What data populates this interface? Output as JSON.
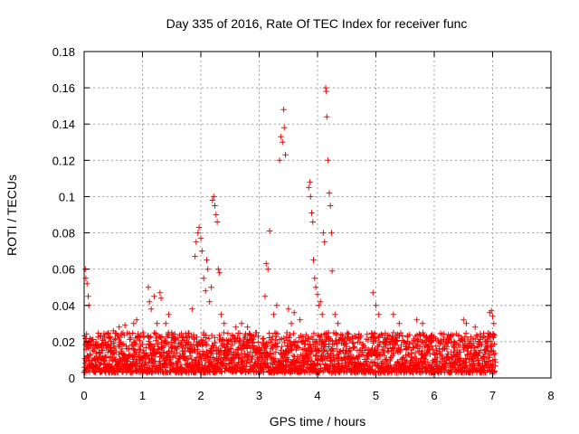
{
  "chart_data": {
    "type": "scatter",
    "title": "Day 335 of 2016, Rate Of TEC Index for receiver func",
    "xlabel": "GPS time / hours",
    "ylabel": "ROTI / TECUs",
    "xlim": [
      0,
      8
    ],
    "ylim": [
      0,
      0.18
    ],
    "x_ticks": [
      0,
      1,
      2,
      3,
      4,
      5,
      6,
      7,
      8
    ],
    "y_ticks": [
      0,
      0.02,
      0.04,
      0.06,
      0.08,
      0.1,
      0.12,
      0.14,
      0.16,
      0.18
    ],
    "x_tick_labels": [
      "0",
      "1",
      "2",
      "3",
      "4",
      "5",
      "6",
      "7",
      "8"
    ],
    "y_tick_labels": [
      "0",
      "0.02",
      "0.04",
      "0.06",
      "0.08",
      "0.1",
      "0.12",
      "0.14",
      "0.16",
      "0.18"
    ],
    "grid": true,
    "marker": "plus",
    "color": "#ff0000",
    "data_range_hours": [
      0,
      7.05
    ],
    "baseline_band": [
      0.003,
      0.025
    ],
    "series": [
      {
        "name": "ROTI",
        "points": [
          [
            0.02,
            0.06
          ],
          [
            0.03,
            0.055
          ],
          [
            0.05,
            0.052
          ],
          [
            0.07,
            0.045
          ],
          [
            0.08,
            0.04
          ],
          [
            0.5,
            0.026
          ],
          [
            0.6,
            0.028
          ],
          [
            0.7,
            0.029
          ],
          [
            0.85,
            0.03
          ],
          [
            0.9,
            0.032
          ],
          [
            1.1,
            0.05
          ],
          [
            1.12,
            0.042
          ],
          [
            1.15,
            0.038
          ],
          [
            1.2,
            0.045
          ],
          [
            1.25,
            0.03
          ],
          [
            1.3,
            0.047
          ],
          [
            1.32,
            0.044
          ],
          [
            1.4,
            0.03
          ],
          [
            1.45,
            0.035
          ],
          [
            1.5,
            0.025
          ],
          [
            1.85,
            0.038
          ],
          [
            1.9,
            0.067
          ],
          [
            1.92,
            0.075
          ],
          [
            1.95,
            0.08
          ],
          [
            1.97,
            0.083
          ],
          [
            2.0,
            0.077
          ],
          [
            2.02,
            0.07
          ],
          [
            2.05,
            0.055
          ],
          [
            2.08,
            0.048
          ],
          [
            2.1,
            0.065
          ],
          [
            2.12,
            0.06
          ],
          [
            2.15,
            0.042
          ],
          [
            2.18,
            0.05
          ],
          [
            2.2,
            0.098
          ],
          [
            2.22,
            0.1
          ],
          [
            2.24,
            0.095
          ],
          [
            2.26,
            0.09
          ],
          [
            2.28,
            0.086
          ],
          [
            2.3,
            0.06
          ],
          [
            2.32,
            0.058
          ],
          [
            2.35,
            0.035
          ],
          [
            2.4,
            0.03
          ],
          [
            2.6,
            0.028
          ],
          [
            2.7,
            0.03
          ],
          [
            2.8,
            0.028
          ],
          [
            3.1,
            0.045
          ],
          [
            3.12,
            0.063
          ],
          [
            3.15,
            0.06
          ],
          [
            3.18,
            0.081
          ],
          [
            3.25,
            0.035
          ],
          [
            3.3,
            0.04
          ],
          [
            3.35,
            0.12
          ],
          [
            3.37,
            0.133
          ],
          [
            3.4,
            0.13
          ],
          [
            3.42,
            0.148
          ],
          [
            3.43,
            0.138
          ],
          [
            3.45,
            0.123
          ],
          [
            3.5,
            0.038
          ],
          [
            3.55,
            0.03
          ],
          [
            3.6,
            0.036
          ],
          [
            3.7,
            0.032
          ],
          [
            3.85,
            0.105
          ],
          [
            3.87,
            0.108
          ],
          [
            3.88,
            0.1
          ],
          [
            3.9,
            0.091
          ],
          [
            3.92,
            0.086
          ],
          [
            3.93,
            0.065
          ],
          [
            3.95,
            0.055
          ],
          [
            3.97,
            0.05
          ],
          [
            4.0,
            0.046
          ],
          [
            4.02,
            0.04
          ],
          [
            4.05,
            0.042
          ],
          [
            4.08,
            0.035
          ],
          [
            4.1,
            0.08
          ],
          [
            4.12,
            0.075
          ],
          [
            4.14,
            0.16
          ],
          [
            4.15,
            0.158
          ],
          [
            4.16,
            0.144
          ],
          [
            4.18,
            0.12
          ],
          [
            4.2,
            0.102
          ],
          [
            4.22,
            0.095
          ],
          [
            4.24,
            0.08
          ],
          [
            4.25,
            0.059
          ],
          [
            4.3,
            0.035
          ],
          [
            4.35,
            0.03
          ],
          [
            4.95,
            0.047
          ],
          [
            5.0,
            0.04
          ],
          [
            5.05,
            0.035
          ],
          [
            5.3,
            0.035
          ],
          [
            5.4,
            0.03
          ],
          [
            5.7,
            0.032
          ],
          [
            5.8,
            0.03
          ],
          [
            6.5,
            0.032
          ],
          [
            6.55,
            0.03
          ],
          [
            6.7,
            0.028
          ],
          [
            6.95,
            0.036
          ],
          [
            6.98,
            0.037
          ],
          [
            7.0,
            0.034
          ],
          [
            7.02,
            0.03
          ]
        ]
      }
    ]
  }
}
